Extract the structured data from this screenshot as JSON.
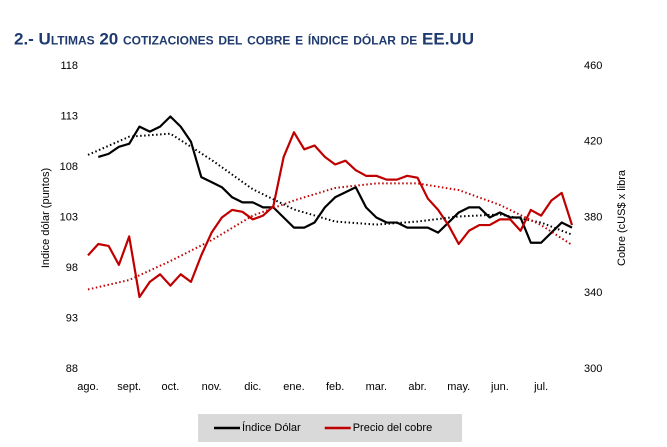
{
  "chart_data": {
    "type": "line",
    "title": "2.- Ultimas 20 cotizaciones del cobre e índice dólar de EE.UU",
    "ylabel": "Indice dólar (puntos)",
    "y2label": "Cobre (cUS$ x libra",
    "categories": [
      "ago.",
      null,
      null,
      null,
      "sept.",
      null,
      null,
      null,
      "oct.",
      null,
      null,
      null,
      "nov.",
      null,
      null,
      null,
      "dic.",
      null,
      null,
      null,
      "ene.",
      null,
      null,
      null,
      "feb.",
      null,
      null,
      null,
      "mar.",
      null,
      null,
      null,
      "abr.",
      null,
      null,
      null,
      "may.",
      null,
      null,
      null,
      "jun.",
      null,
      null,
      null,
      "jul.",
      null,
      null,
      null
    ],
    "series": [
      {
        "name": "Índice Dólar",
        "color": "#000000",
        "axis": "y",
        "values": [
          null,
          109,
          109.3,
          110,
          110.3,
          112,
          111.5,
          112,
          113,
          112,
          110.5,
          107,
          106.5,
          106,
          105,
          104.5,
          104.5,
          104,
          104,
          103,
          102,
          102,
          102.5,
          104,
          105,
          105.5,
          106,
          104,
          103,
          102.5,
          102.5,
          102,
          102,
          102,
          101.5,
          102.5,
          103.5,
          104,
          104,
          103,
          103.5,
          103,
          103,
          100.5,
          100.5,
          101.5,
          102.5,
          102
        ]
      },
      {
        "name": "Precio del cobre",
        "color": "#c00000",
        "axis": "y2",
        "values": [
          360,
          366,
          365,
          355,
          370,
          338,
          346,
          350,
          344,
          350,
          346,
          360,
          372,
          380,
          384,
          383,
          379,
          381,
          386,
          412,
          425,
          416,
          418,
          412,
          408,
          410,
          405,
          402,
          402,
          400,
          400,
          402,
          401,
          390,
          384,
          376,
          366,
          373,
          376,
          376,
          379,
          379,
          373,
          384,
          381,
          389,
          393,
          376
        ]
      }
    ],
    "trendlines": [
      {
        "color": "#000000",
        "axis": "y",
        "x": [
          0,
          4,
          8,
          12,
          16,
          20,
          24,
          28,
          32,
          36,
          40,
          44,
          47
        ],
        "values": [
          109.2,
          111,
          111.3,
          108.7,
          105.8,
          103.8,
          102.6,
          102.3,
          102.6,
          103.1,
          103.3,
          102.5,
          101.3
        ]
      },
      {
        "color": "#c00000",
        "axis": "y2",
        "x": [
          0,
          4,
          8,
          12,
          16,
          20,
          24,
          28,
          32,
          36,
          40,
          44,
          47
        ],
        "values": [
          342,
          347,
          357,
          368,
          381,
          389,
          395.6,
          398,
          398,
          394.5,
          386.6,
          376,
          365.5
        ]
      }
    ],
    "ylim": [
      88,
      118
    ],
    "yticks": [
      88,
      93,
      98,
      103,
      108,
      113,
      118
    ],
    "y2lim": [
      300,
      460
    ],
    "y2ticks": [
      300,
      340,
      380,
      420,
      460
    ],
    "legend": "bottom"
  }
}
